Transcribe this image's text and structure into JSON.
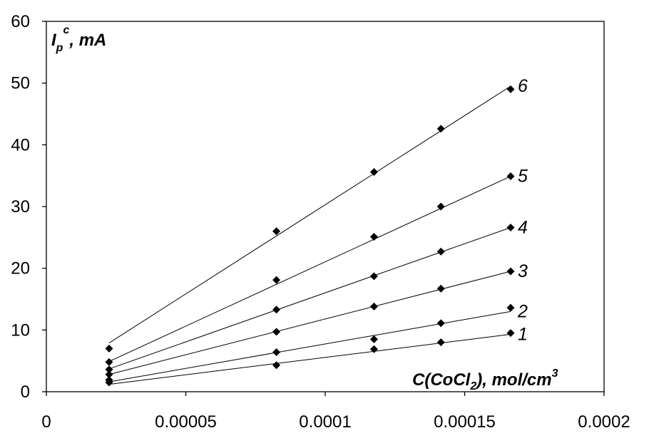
{
  "chart_data": {
    "type": "scatter",
    "title": "",
    "xlabel": {
      "main": "C(CoCl",
      "sub": "2",
      "mid": "), mol/cm",
      "sup": "3"
    },
    "ylabel": {
      "main": "I",
      "sub": "p",
      "sup": "c",
      "rest": ", mA"
    },
    "xlim": [
      0,
      0.0002
    ],
    "ylim": [
      0,
      60
    ],
    "x_ticks": [
      {
        "value": 0,
        "label": "0"
      },
      {
        "value": 5e-05,
        "label": "0.00005"
      },
      {
        "value": 0.0001,
        "label": "0.0001"
      },
      {
        "value": 0.00015,
        "label": "0.00015"
      },
      {
        "value": 0.0002,
        "label": "0.0002"
      }
    ],
    "y_ticks": [
      {
        "value": 0,
        "label": "0"
      },
      {
        "value": 10,
        "label": "10"
      },
      {
        "value": 20,
        "label": "20"
      },
      {
        "value": 30,
        "label": "30"
      },
      {
        "value": 40,
        "label": "40"
      },
      {
        "value": 50,
        "label": "50"
      },
      {
        "value": 60,
        "label": "60"
      }
    ],
    "grid": false,
    "trendlines": true,
    "marker": "diamond",
    "color": "#000000",
    "x": [
      2.25e-05,
      8.25e-05,
      0.0001175,
      0.0001415,
      0.0001665
    ],
    "series": [
      {
        "name": "1",
        "values": [
          1.5,
          4.3,
          6.9,
          8.0,
          9.5
        ],
        "fit": [
          1.2,
          9.3
        ]
      },
      {
        "name": "2",
        "values": [
          1.9,
          6.4,
          8.5,
          11.1,
          13.6
        ],
        "fit": [
          1.6,
          13.0
        ]
      },
      {
        "name": "3",
        "values": [
          2.8,
          9.7,
          13.8,
          16.7,
          19.5
        ],
        "fit": [
          2.8,
          19.5
        ]
      },
      {
        "name": "4",
        "values": [
          3.6,
          13.3,
          18.7,
          22.7,
          26.6
        ],
        "fit": [
          3.7,
          26.6
        ]
      },
      {
        "name": "5",
        "values": [
          4.8,
          18.1,
          25.1,
          30.0,
          34.9
        ],
        "fit": [
          4.9,
          34.9
        ]
      },
      {
        "name": "6",
        "values": [
          7.0,
          26.0,
          35.6,
          42.6,
          49.0
        ],
        "fit": [
          7.9,
          49.5
        ]
      }
    ]
  }
}
